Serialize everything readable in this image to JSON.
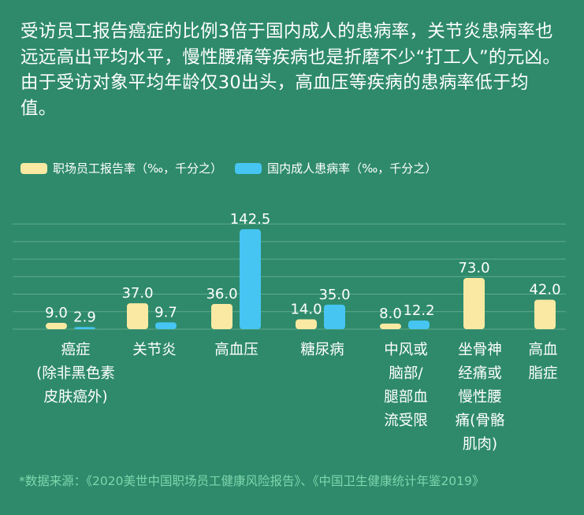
{
  "intro": {
    "text": "受访员工报告癌症的比例3倍于国内成人的患病率，关节炎患病率也远远高出平均水平，慢性腰痛等疾病也是折磨不少“打工人”的元凶。由于受访对象平均年龄仅30出头，高血压等疾病的患病率低于均值。"
  },
  "colors": {
    "background": "#2e8a6b",
    "workplace": "#fae9a2",
    "national": "#46c5f2",
    "gridline": "#5faa8a",
    "footnote": "#7fd6ad"
  },
  "chart_data": {
    "type": "bar",
    "title": "",
    "xlabel": "",
    "ylabel": "",
    "ylim": [
      0,
      150
    ],
    "grid": true,
    "legend_position": "top-left",
    "categories": [
      [
        "癌症",
        "(除非黑色素",
        "皮肤癌外)"
      ],
      [
        "关节炎"
      ],
      [
        "高血压"
      ],
      [
        "糖尿病"
      ],
      [
        "中风或",
        "脑部/",
        "腿部血",
        "流受限"
      ],
      [
        "坐骨神",
        "经痛或",
        "慢性腰",
        "痛(骨骼",
        "肌肉)"
      ],
      [
        "高血",
        "脂症"
      ]
    ],
    "series": [
      {
        "name": "职场员工报告率（‰，千分之）",
        "color": "#fae9a2",
        "values": [
          9.0,
          37.0,
          36.0,
          14.0,
          8.0,
          73.0,
          42.0
        ],
        "labels": [
          "9.0",
          "37.0",
          "36.0",
          "14.0",
          "8.0",
          "73.0",
          "42.0"
        ]
      },
      {
        "name": "国内成人患病率（‰，千分之）",
        "color": "#46c5f2",
        "values": [
          2.9,
          9.7,
          142.5,
          35.0,
          12.2,
          null,
          null
        ],
        "labels": [
          "2.9",
          "9.7",
          "142.5",
          "35.0",
          "12.2",
          "",
          ""
        ]
      }
    ]
  },
  "footnote": {
    "text": "*数据来源：《2020美世中国职场员工健康风险报告》、《中国卫生健康统计年鉴2019》"
  }
}
